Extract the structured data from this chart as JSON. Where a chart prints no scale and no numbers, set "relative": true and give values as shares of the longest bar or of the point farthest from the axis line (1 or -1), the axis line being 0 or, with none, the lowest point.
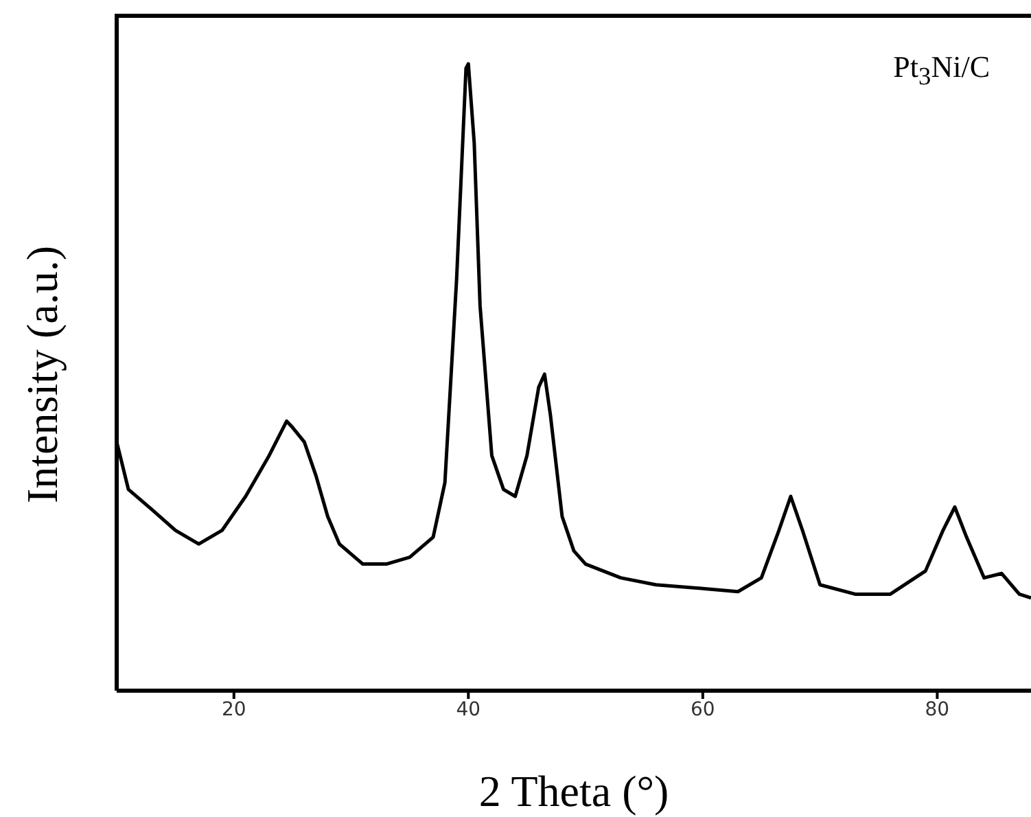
{
  "chart_data": {
    "type": "line",
    "relative": true,
    "xlabel": "2 Theta (°)",
    "ylabel": "Intensity (a.u.)",
    "annotations": [
      "Pt$_{3}$Ni/C"
    ],
    "xlim": [
      10,
      88
    ],
    "xticks": [
      20,
      40,
      60,
      80
    ],
    "marker": "none",
    "grid": false,
    "series": [
      {
        "color": "#000000",
        "x": [
          10,
          11,
          13,
          15,
          17,
          19,
          21,
          23,
          24.5,
          25,
          26,
          27,
          28,
          29,
          31,
          33,
          35,
          37,
          38,
          39,
          39.8,
          40,
          40.5,
          41,
          42,
          43,
          44,
          45,
          46,
          46.5,
          47,
          48,
          49,
          50,
          53,
          56,
          60,
          63,
          65,
          66.5,
          67.5,
          68.5,
          70,
          73,
          76,
          79,
          80.5,
          81.5,
          82.5,
          84,
          85.5,
          87,
          88
        ],
        "values": [
          0.397,
          0.321,
          0.289,
          0.256,
          0.234,
          0.256,
          0.31,
          0.375,
          0.43,
          0.42,
          0.397,
          0.343,
          0.278,
          0.234,
          0.202,
          0.202,
          0.213,
          0.245,
          0.332,
          0.657,
          0.993,
          1,
          0.874,
          0.614,
          0.375,
          0.321,
          0.31,
          0.375,
          0.484,
          0.505,
          0.44,
          0.278,
          0.223,
          0.202,
          0.18,
          0.169,
          0.163,
          0.158,
          0.18,
          0.256,
          0.31,
          0.256,
          0.169,
          0.154,
          0.154,
          0.191,
          0.256,
          0.293,
          0.245,
          0.18,
          0.187,
          0.154,
          0.148
        ]
      }
    ]
  }
}
